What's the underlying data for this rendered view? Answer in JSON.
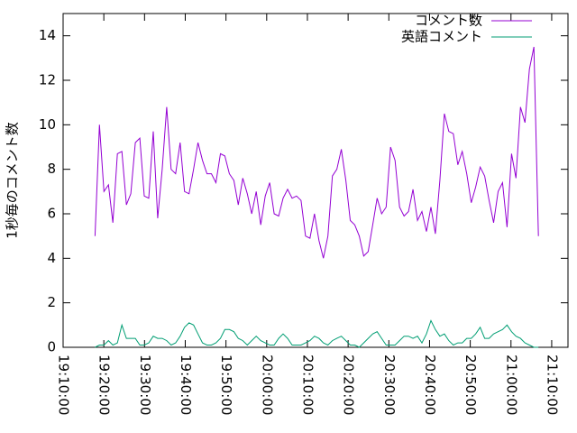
{
  "chart_data": {
    "type": "line",
    "ylabel": "1秒毎のコメント数",
    "legend": "top right",
    "xlim": [
      "19:10:00",
      "21:14:00"
    ],
    "xticks": [
      "19:10:00",
      "19:20:00",
      "19:30:00",
      "19:40:00",
      "19:50:00",
      "20:00:00",
      "20:10:00",
      "20:20:00",
      "20:30:00",
      "20:40:00",
      "20:50:00",
      "21:00:00",
      "21:10:00"
    ],
    "ylim": [
      0,
      15
    ],
    "yticks": [
      0,
      2,
      4,
      6,
      8,
      10,
      12,
      14
    ],
    "x": [
      "19:17:50",
      "19:18:56",
      "19:20:02",
      "19:21:08",
      "19:22:14",
      "19:23:20",
      "19:24:26",
      "19:25:32",
      "19:26:38",
      "19:27:44",
      "19:28:50",
      "19:29:56",
      "19:31:02",
      "19:32:08",
      "19:33:14",
      "19:34:20",
      "19:35:26",
      "19:36:32",
      "19:37:38",
      "19:38:44",
      "19:39:50",
      "19:40:56",
      "19:42:02",
      "19:43:08",
      "19:44:14",
      "19:45:20",
      "19:46:26",
      "19:47:32",
      "19:48:38",
      "19:49:44",
      "19:50:50",
      "19:51:56",
      "19:53:02",
      "19:54:08",
      "19:55:14",
      "19:56:20",
      "19:57:26",
      "19:58:32",
      "19:59:38",
      "20:00:44",
      "20:01:50",
      "20:02:56",
      "20:04:02",
      "20:05:08",
      "20:06:14",
      "20:07:20",
      "20:08:26",
      "20:09:32",
      "20:10:38",
      "20:11:44",
      "20:12:50",
      "20:13:56",
      "20:15:02",
      "20:16:08",
      "20:17:14",
      "20:18:20",
      "20:19:26",
      "20:20:32",
      "20:21:38",
      "20:22:44",
      "20:23:50",
      "20:24:56",
      "20:26:02",
      "20:27:08",
      "20:28:14",
      "20:29:20",
      "20:30:26",
      "20:31:32",
      "20:32:38",
      "20:33:44",
      "20:34:50",
      "20:35:56",
      "20:37:02",
      "20:38:08",
      "20:39:14",
      "20:40:20",
      "20:41:26",
      "20:42:32",
      "20:43:38",
      "20:44:44",
      "20:45:50",
      "20:46:56",
      "20:48:02",
      "20:49:08",
      "20:50:14",
      "20:51:20",
      "20:52:26",
      "20:53:32",
      "20:54:38",
      "20:55:44",
      "20:56:50",
      "20:57:56",
      "20:59:02",
      "21:00:08",
      "21:01:14",
      "21:02:20",
      "21:03:26",
      "21:04:32",
      "21:05:38",
      "21:06:44"
    ],
    "series": [
      {
        "name": "コメント数",
        "color": "#9400d3",
        "values": [
          5.0,
          10.0,
          7.0,
          7.3,
          5.6,
          8.7,
          8.8,
          6.4,
          6.9,
          9.2,
          9.4,
          6.8,
          6.7,
          9.7,
          5.8,
          8.0,
          10.8,
          8.0,
          7.8,
          9.2,
          7.0,
          6.9,
          8.0,
          9.2,
          8.4,
          7.8,
          7.8,
          7.4,
          8.7,
          8.6,
          7.8,
          7.5,
          6.4,
          7.6,
          6.9,
          6.0,
          7.0,
          5.5,
          6.8,
          7.4,
          6.0,
          5.9,
          6.7,
          7.1,
          6.7,
          6.8,
          6.6,
          5.0,
          4.9,
          6.0,
          4.8,
          4.0,
          5.0,
          7.7,
          8.0,
          8.9,
          7.5,
          5.7,
          5.5,
          5.0,
          4.1,
          4.3,
          5.5,
          6.7,
          6.0,
          6.3,
          9.0,
          8.4,
          6.3,
          5.9,
          6.1,
          7.1,
          5.7,
          6.1,
          5.2,
          6.3,
          5.1,
          7.5,
          10.5,
          9.7,
          9.6,
          8.2,
          8.8,
          7.8,
          6.5,
          7.2,
          8.1,
          7.7,
          6.6,
          5.6,
          7.0,
          7.4,
          5.4,
          8.7,
          7.6,
          10.8,
          10.1,
          12.5,
          13.5,
          5.0
        ]
      },
      {
        "name": "英語コメント",
        "color": "#009e73",
        "values": [
          0,
          0.1,
          0.1,
          0.3,
          0.1,
          0.2,
          1.0,
          0.4,
          0.4,
          0.4,
          0.1,
          0.1,
          0.2,
          0.5,
          0.4,
          0.4,
          0.3,
          0.1,
          0.2,
          0.5,
          0.9,
          1.1,
          1.0,
          0.6,
          0.2,
          0.1,
          0.1,
          0.2,
          0.4,
          0.8,
          0.8,
          0.7,
          0.4,
          0.3,
          0.1,
          0.3,
          0.5,
          0.3,
          0.2,
          0.1,
          0.1,
          0.4,
          0.6,
          0.4,
          0.1,
          0.1,
          0.1,
          0.2,
          0.3,
          0.5,
          0.4,
          0.2,
          0.1,
          0.3,
          0.4,
          0.5,
          0.3,
          0.1,
          0.1,
          0.0,
          0.2,
          0.4,
          0.6,
          0.7,
          0.4,
          0.1,
          0.1,
          0.1,
          0.3,
          0.5,
          0.5,
          0.4,
          0.5,
          0.2,
          0.6,
          1.2,
          0.8,
          0.5,
          0.6,
          0.3,
          0.1,
          0.2,
          0.2,
          0.4,
          0.4,
          0.6,
          0.9,
          0.4,
          0.4,
          0.6,
          0.7,
          0.8,
          1.0,
          0.7,
          0.5,
          0.4,
          0.2,
          0.1,
          0.0,
          0.0
        ]
      }
    ]
  }
}
